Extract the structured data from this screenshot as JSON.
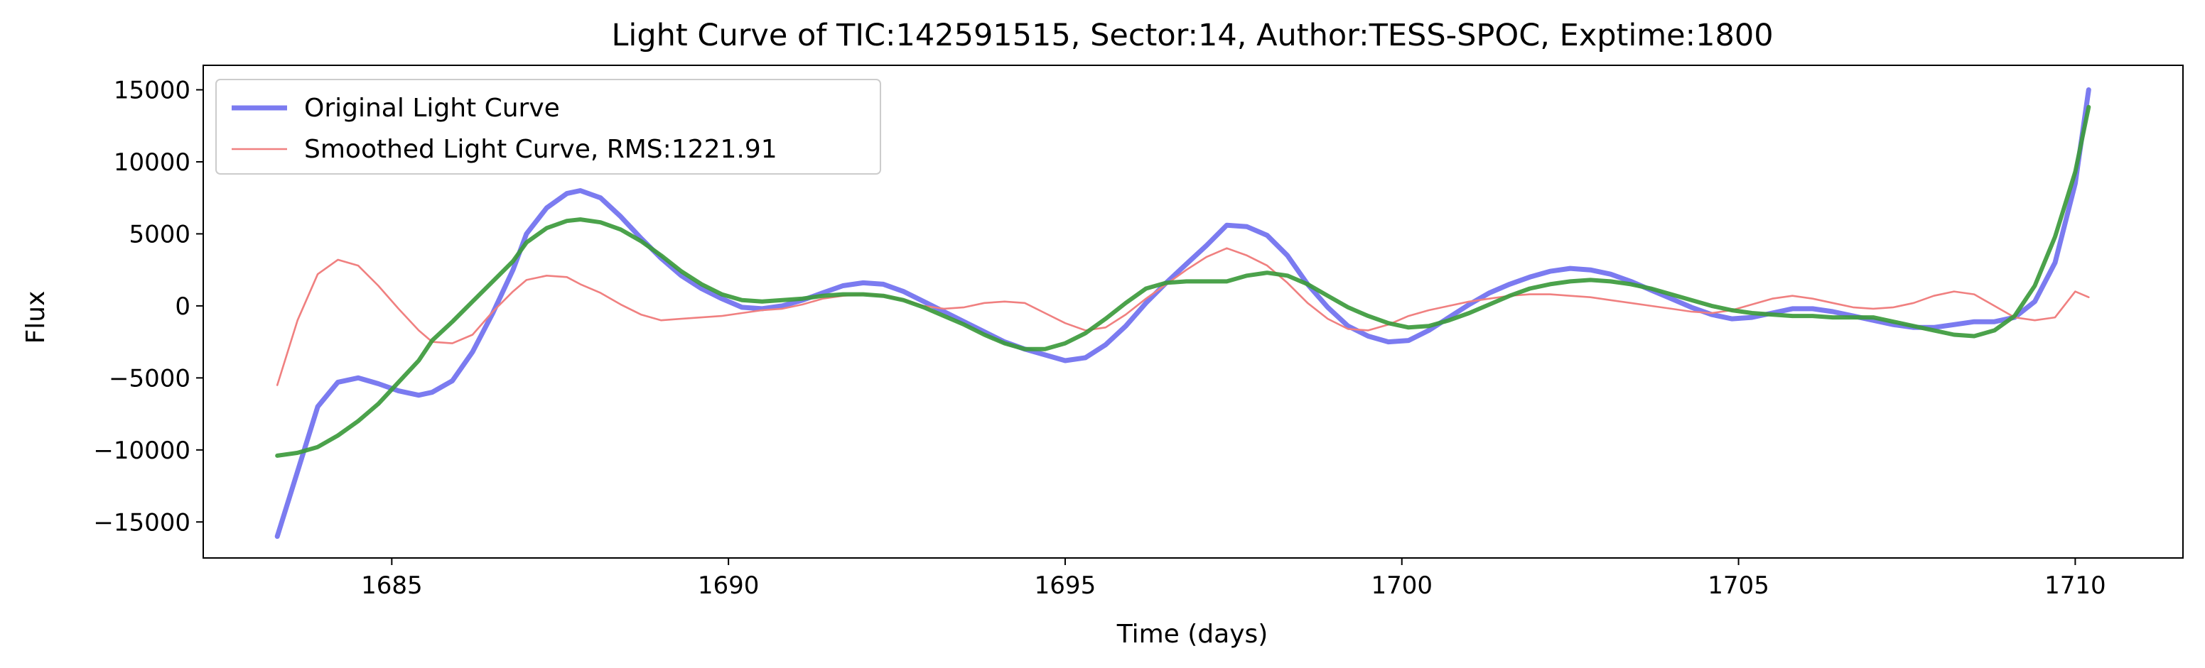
{
  "chart_data": {
    "type": "line",
    "title": "Light Curve of TIC:142591515, Sector:14, Author:TESS-SPOC, Exptime:1800",
    "xlabel": "Time (days)",
    "ylabel": "Flux",
    "xlim": [
      1682.2,
      1711.6
    ],
    "ylim": [
      -17500,
      16700
    ],
    "xticks": [
      1685,
      1690,
      1695,
      1700,
      1705,
      1710
    ],
    "xtick_labels": [
      "1685",
      "1690",
      "1695",
      "1700",
      "1705",
      "1710"
    ],
    "yticks": [
      -15000,
      -10000,
      -5000,
      0,
      5000,
      10000,
      15000
    ],
    "ytick_labels": [
      "−15000",
      "−10000",
      "−5000",
      "0",
      "5000",
      "10000",
      "15000"
    ],
    "grid": false,
    "legend_position": "upper-left",
    "series": [
      {
        "name": "Original Light Curve",
        "color": "#7b7bf0",
        "style": "thick",
        "x": [
          1683.3,
          1683.6,
          1683.9,
          1684.2,
          1684.5,
          1684.8,
          1685.1,
          1685.4,
          1685.6,
          1685.9,
          1686.2,
          1686.5,
          1686.8,
          1687.0,
          1687.3,
          1687.6,
          1687.8,
          1688.1,
          1688.4,
          1688.7,
          1689.0,
          1689.3,
          1689.6,
          1689.9,
          1690.2,
          1690.5,
          1690.8,
          1691.1,
          1691.4,
          1691.7,
          1692.0,
          1692.3,
          1692.6,
          1692.9,
          1693.2,
          1693.5,
          1693.8,
          1694.1,
          1694.4,
          1694.7,
          1695.0,
          1695.3,
          1695.6,
          1695.9,
          1696.2,
          1696.5,
          1696.8,
          1697.1,
          1697.4,
          1697.7,
          1698.0,
          1698.3,
          1698.6,
          1698.9,
          1699.2,
          1699.5,
          1699.8,
          1700.1,
          1700.4,
          1700.7,
          1701.0,
          1701.3,
          1701.6,
          1701.9,
          1702.2,
          1702.5,
          1702.8,
          1703.1,
          1703.4,
          1703.7,
          1704.0,
          1704.3,
          1704.6,
          1704.9,
          1705.2,
          1705.5,
          1705.8,
          1706.1,
          1706.4,
          1706.7,
          1707.0,
          1707.3,
          1707.6,
          1707.9,
          1708.2,
          1708.5,
          1708.8,
          1709.1,
          1709.4,
          1709.7,
          1710.0,
          1710.2
        ],
        "y": [
          -16000,
          -11500,
          -7000,
          -5300,
          -5000,
          -5400,
          -5900,
          -6200,
          -6000,
          -5200,
          -3200,
          -500,
          2500,
          5000,
          6800,
          7800,
          8000,
          7500,
          6200,
          4700,
          3300,
          2100,
          1200,
          500,
          -100,
          -200,
          0,
          400,
          900,
          1400,
          1600,
          1500,
          1000,
          300,
          -400,
          -1100,
          -1800,
          -2500,
          -3000,
          -3400,
          -3800,
          -3600,
          -2700,
          -1400,
          200,
          1600,
          2900,
          4200,
          5600,
          5500,
          4900,
          3500,
          1500,
          -100,
          -1400,
          -2100,
          -2500,
          -2400,
          -1700,
          -800,
          100,
          900,
          1500,
          2000,
          2400,
          2600,
          2500,
          2200,
          1700,
          1100,
          500,
          -100,
          -600,
          -900,
          -800,
          -500,
          -200,
          -200,
          -400,
          -700,
          -1000,
          -1300,
          -1500,
          -1500,
          -1300,
          -1100,
          -1100,
          -800,
          300,
          3000,
          8500,
          15000
        ]
      },
      {
        "name": "Smoothed Light Curve, RMS:1221.91",
        "color": "#f08080",
        "style": "thin",
        "x": [
          1683.3,
          1683.6,
          1683.9,
          1684.2,
          1684.5,
          1684.8,
          1685.1,
          1685.4,
          1685.6,
          1685.9,
          1686.2,
          1686.5,
          1686.8,
          1687.0,
          1687.3,
          1687.6,
          1687.8,
          1688.1,
          1688.4,
          1688.7,
          1689.0,
          1689.3,
          1689.6,
          1689.9,
          1690.2,
          1690.5,
          1690.8,
          1691.1,
          1691.4,
          1691.7,
          1692.0,
          1692.3,
          1692.6,
          1692.9,
          1693.2,
          1693.5,
          1693.8,
          1694.1,
          1694.4,
          1694.7,
          1695.0,
          1695.3,
          1695.6,
          1695.9,
          1696.2,
          1696.5,
          1696.8,
          1697.1,
          1697.4,
          1697.7,
          1698.0,
          1698.3,
          1698.6,
          1698.9,
          1699.2,
          1699.5,
          1699.8,
          1700.1,
          1700.4,
          1700.7,
          1701.0,
          1701.3,
          1701.6,
          1701.9,
          1702.2,
          1702.5,
          1702.8,
          1703.1,
          1703.4,
          1703.7,
          1704.0,
          1704.3,
          1704.6,
          1704.9,
          1705.2,
          1705.5,
          1705.8,
          1706.1,
          1706.4,
          1706.7,
          1707.0,
          1707.3,
          1707.6,
          1707.9,
          1708.2,
          1708.5,
          1708.8,
          1709.1,
          1709.4,
          1709.7,
          1710.0,
          1710.2
        ],
        "y": [
          -5500,
          -1000,
          2200,
          3200,
          2800,
          1400,
          -200,
          -1700,
          -2500,
          -2600,
          -2000,
          -400,
          1000,
          1800,
          2100,
          2000,
          1500,
          900,
          100,
          -600,
          -1000,
          -900,
          -800,
          -700,
          -500,
          -300,
          -200,
          100,
          500,
          700,
          800,
          700,
          400,
          0,
          -200,
          -100,
          200,
          300,
          200,
          -500,
          -1200,
          -1700,
          -1500,
          -600,
          500,
          1500,
          2500,
          3400,
          4000,
          3500,
          2800,
          1600,
          200,
          -900,
          -1600,
          -1700,
          -1300,
          -700,
          -300,
          0,
          300,
          500,
          700,
          800,
          800,
          700,
          600,
          400,
          200,
          0,
          -200,
          -400,
          -500,
          -300,
          100,
          500,
          700,
          500,
          200,
          -100,
          -200,
          -100,
          200,
          700,
          1000,
          800,
          0,
          -800,
          -1000,
          -800,
          1000,
          600
        ]
      },
      {
        "name": "",
        "color": "#3c9a3c",
        "style": "medium",
        "x": [
          1683.3,
          1683.6,
          1683.9,
          1684.2,
          1684.5,
          1684.8,
          1685.1,
          1685.4,
          1685.6,
          1685.9,
          1686.2,
          1686.5,
          1686.8,
          1687.0,
          1687.3,
          1687.6,
          1687.8,
          1688.1,
          1688.4,
          1688.7,
          1689.0,
          1689.3,
          1689.6,
          1689.9,
          1690.2,
          1690.5,
          1690.8,
          1691.1,
          1691.4,
          1691.7,
          1692.0,
          1692.3,
          1692.6,
          1692.9,
          1693.2,
          1693.5,
          1693.8,
          1694.1,
          1694.4,
          1694.7,
          1695.0,
          1695.3,
          1695.6,
          1695.9,
          1696.2,
          1696.5,
          1696.8,
          1697.1,
          1697.4,
          1697.7,
          1698.0,
          1698.3,
          1698.6,
          1698.9,
          1699.2,
          1699.5,
          1699.8,
          1700.1,
          1700.4,
          1700.7,
          1701.0,
          1701.3,
          1701.6,
          1701.9,
          1702.2,
          1702.5,
          1702.8,
          1703.1,
          1703.4,
          1703.7,
          1704.0,
          1704.3,
          1704.6,
          1704.9,
          1705.2,
          1705.5,
          1705.8,
          1706.1,
          1706.4,
          1706.7,
          1707.0,
          1707.3,
          1707.6,
          1707.9,
          1708.2,
          1708.5,
          1708.8,
          1709.1,
          1709.4,
          1709.7,
          1710.0,
          1710.2
        ],
        "y": [
          -10400,
          -10200,
          -9800,
          -9000,
          -8000,
          -6800,
          -5300,
          -3800,
          -2400,
          -1100,
          300,
          1700,
          3100,
          4400,
          5400,
          5900,
          6000,
          5800,
          5300,
          4500,
          3500,
          2400,
          1500,
          800,
          400,
          300,
          400,
          500,
          700,
          800,
          800,
          700,
          400,
          -100,
          -700,
          -1300,
          -2000,
          -2600,
          -3000,
          -3000,
          -2600,
          -1900,
          -900,
          200,
          1200,
          1600,
          1700,
          1700,
          1700,
          2100,
          2300,
          2100,
          1500,
          700,
          -100,
          -700,
          -1200,
          -1500,
          -1400,
          -1000,
          -500,
          100,
          700,
          1200,
          1500,
          1700,
          1800,
          1700,
          1500,
          1200,
          800,
          400,
          0,
          -300,
          -500,
          -600,
          -700,
          -700,
          -800,
          -800,
          -800,
          -1100,
          -1400,
          -1700,
          -2000,
          -2100,
          -1700,
          -700,
          1400,
          4800,
          9300,
          13800
        ]
      }
    ]
  }
}
